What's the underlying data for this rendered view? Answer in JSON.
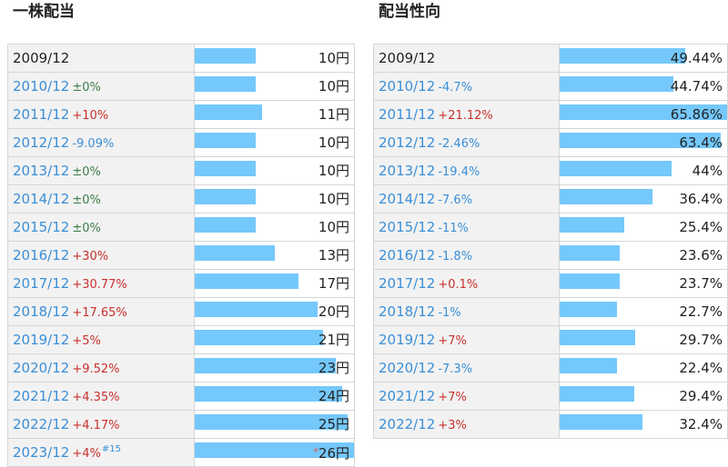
{
  "chart_data": [
    {
      "type": "bar",
      "title": "一株配当",
      "unit": "円",
      "max": 26,
      "rows": [
        {
          "year": "2009/12",
          "change": "",
          "dir": "none",
          "value": 10,
          "label": "10円"
        },
        {
          "year": "2010/12",
          "change": "±0%",
          "dir": "flat",
          "value": 10,
          "label": "10円"
        },
        {
          "year": "2011/12",
          "change": "+10%",
          "dir": "up",
          "value": 11,
          "label": "11円"
        },
        {
          "year": "2012/12",
          "change": "-9.09%",
          "dir": "down",
          "value": 10,
          "label": "10円"
        },
        {
          "year": "2013/12",
          "change": "±0%",
          "dir": "flat",
          "value": 10,
          "label": "10円"
        },
        {
          "year": "2014/12",
          "change": "±0%",
          "dir": "flat",
          "value": 10,
          "label": "10円"
        },
        {
          "year": "2015/12",
          "change": "±0%",
          "dir": "flat",
          "value": 10,
          "label": "10円"
        },
        {
          "year": "2016/12",
          "change": "+30%",
          "dir": "up",
          "value": 13,
          "label": "13円"
        },
        {
          "year": "2017/12",
          "change": "+30.77%",
          "dir": "up",
          "value": 17,
          "label": "17円"
        },
        {
          "year": "2018/12",
          "change": "+17.65%",
          "dir": "up",
          "value": 20,
          "label": "20円"
        },
        {
          "year": "2019/12",
          "change": "+5%",
          "dir": "up",
          "value": 21,
          "label": "21円"
        },
        {
          "year": "2020/12",
          "change": "+9.52%",
          "dir": "up",
          "value": 23,
          "label": "23円"
        },
        {
          "year": "2021/12",
          "change": "+4.35%",
          "dir": "up",
          "value": 24,
          "label": "24円"
        },
        {
          "year": "2022/12",
          "change": "+4.17%",
          "dir": "up",
          "value": 25,
          "label": "25円"
        },
        {
          "year": "2023/12",
          "change": "+4%",
          "dir": "up",
          "note": "#15",
          "star": "*",
          "value": 26,
          "label": "26円"
        }
      ]
    },
    {
      "type": "bar",
      "title": "配当性向",
      "unit": "%",
      "max": 65.86,
      "rows": [
        {
          "year": "2009/12",
          "change": "",
          "dir": "none",
          "value": 49.44,
          "label": "49.44%"
        },
        {
          "year": "2010/12",
          "change": "-4.7%",
          "dir": "down",
          "value": 44.74,
          "label": "44.74%"
        },
        {
          "year": "2011/12",
          "change": "+21.12%",
          "dir": "up",
          "value": 65.86,
          "label": "65.86%"
        },
        {
          "year": "2012/12",
          "change": "-2.46%",
          "dir": "down",
          "value": 63.4,
          "label": "63.4%"
        },
        {
          "year": "2013/12",
          "change": "-19.4%",
          "dir": "down",
          "value": 44,
          "label": "44%"
        },
        {
          "year": "2014/12",
          "change": "-7.6%",
          "dir": "down",
          "value": 36.4,
          "label": "36.4%"
        },
        {
          "year": "2015/12",
          "change": "-11%",
          "dir": "down",
          "value": 25.4,
          "label": "25.4%"
        },
        {
          "year": "2016/12",
          "change": "-1.8%",
          "dir": "down",
          "value": 23.6,
          "label": "23.6%"
        },
        {
          "year": "2017/12",
          "change": "+0.1%",
          "dir": "up",
          "value": 23.7,
          "label": "23.7%"
        },
        {
          "year": "2018/12",
          "change": "-1%",
          "dir": "down",
          "value": 22.7,
          "label": "22.7%"
        },
        {
          "year": "2019/12",
          "change": "+7%",
          "dir": "up",
          "value": 29.7,
          "label": "29.7%"
        },
        {
          "year": "2020/12",
          "change": "-7.3%",
          "dir": "down",
          "value": 22.4,
          "label": "22.4%"
        },
        {
          "year": "2021/12",
          "change": "+7%",
          "dir": "up",
          "value": 29.4,
          "label": "29.4%"
        },
        {
          "year": "2022/12",
          "change": "+3%",
          "dir": "up",
          "value": 32.4,
          "label": "32.4%"
        }
      ]
    }
  ]
}
